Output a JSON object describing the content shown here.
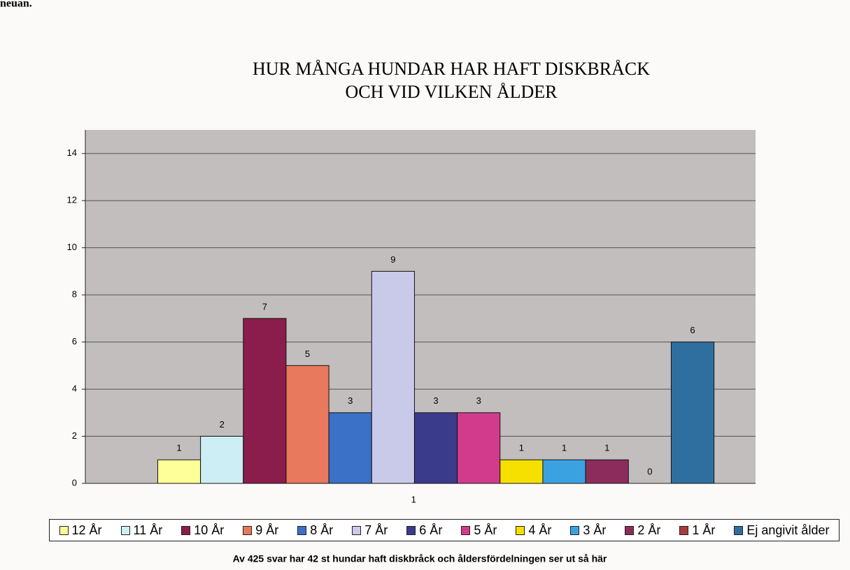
{
  "header_fragment": "neuan.",
  "chart_data": {
    "type": "bar",
    "title": [
      "HUR MÅNGA HUNDAR HAR HAFT DISKBRÅCK",
      "OCH VID VILKEN ÅLDER"
    ],
    "categories": [
      "1"
    ],
    "series": [
      {
        "name": "12 År",
        "color": "#ffff99",
        "values": [
          1
        ]
      },
      {
        "name": "11 År",
        "color": "#cdeef4",
        "values": [
          2
        ]
      },
      {
        "name": "10 År",
        "color": "#8a1d4c",
        "values": [
          7
        ]
      },
      {
        "name": "9 År",
        "color": "#e8795c",
        "values": [
          5
        ]
      },
      {
        "name": "8 År",
        "color": "#3b71c6",
        "values": [
          3
        ]
      },
      {
        "name": "7 År",
        "color": "#c9c9ea",
        "values": [
          9
        ]
      },
      {
        "name": "6 År",
        "color": "#3b3b8c",
        "values": [
          3
        ]
      },
      {
        "name": "5 År",
        "color": "#d23b8c",
        "values": [
          3
        ]
      },
      {
        "name": "4 År",
        "color": "#f5e000",
        "values": [
          1
        ]
      },
      {
        "name": "3 År",
        "color": "#3ba2e2",
        "values": [
          1
        ]
      },
      {
        "name": "2 År",
        "color": "#8c2c5c",
        "values": [
          1
        ]
      },
      {
        "name": "1 År",
        "color": "#a83c3c",
        "values": [
          0
        ]
      },
      {
        "name": "Ej angivit ålder",
        "color": "#2f6fa0",
        "values": [
          6
        ]
      }
    ],
    "ylim": [
      0,
      15
    ],
    "yticks": [
      0,
      2,
      4,
      6,
      8,
      10,
      12,
      14
    ],
    "grid": true,
    "legend": "bottom",
    "footnote": "Av 425 svar har 42 st hundar haft diskbråck och åldersfördelningen ser ut så här"
  }
}
